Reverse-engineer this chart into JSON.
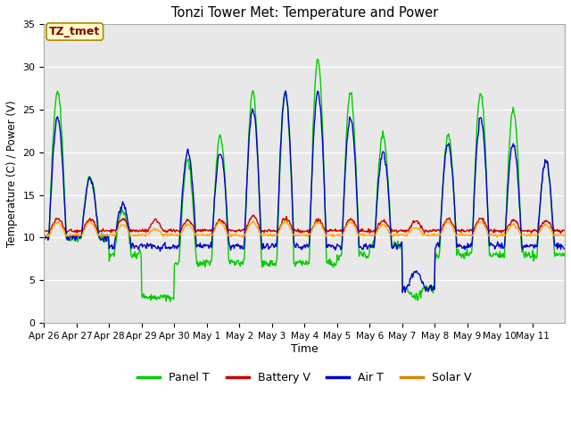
{
  "title": "Tonzi Tower Met: Temperature and Power",
  "xlabel": "Time",
  "ylabel": "Temperature (C) / Power (V)",
  "ylim": [
    0,
    35
  ],
  "yticks": [
    0,
    5,
    10,
    15,
    20,
    25,
    30,
    35
  ],
  "plot_bg_color": "#e8e8e8",
  "legend_entries": [
    "Panel T",
    "Battery V",
    "Air T",
    "Solar V"
  ],
  "legend_colors": [
    "#00cc00",
    "#cc0000",
    "#0000cc",
    "#cc8800"
  ],
  "annotation_text": "TZ_tmet",
  "annotation_bg": "#ffffcc",
  "annotation_border": "#aa8800",
  "annotation_text_color": "#880000",
  "line_colors": {
    "panel_t": "#00cc00",
    "battery_v": "#cc0000",
    "air_t": "#0000cc",
    "solar_v": "#ffaa00"
  },
  "line_width": 1.0,
  "xtick_labels": [
    "Apr 26",
    "Apr 27",
    "Apr 28",
    "Apr 29",
    "Apr 30",
    "May 1",
    "May 2",
    "May 3",
    "May 4",
    "May 5",
    "May 6",
    "May 7",
    "May 8",
    "May 9",
    "May 10",
    "May 11"
  ],
  "n_days": 16,
  "pts_per_day": 48
}
